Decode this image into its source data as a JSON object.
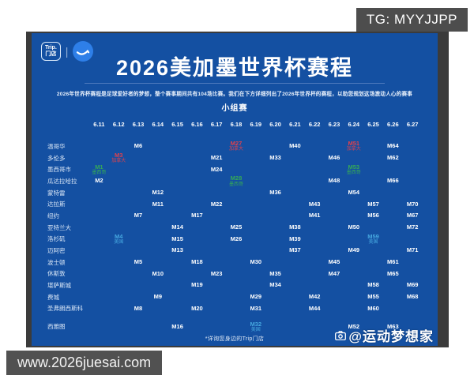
{
  "watermarks": {
    "top_right": "TG: MYYJJPP",
    "bottom_left": "www.2026juesai.com"
  },
  "poster": {
    "brand": {
      "badge_line1": "Trip.",
      "badge_line2": "门店",
      "separator": "|"
    },
    "title": "2026美加墨世界杯赛程",
    "subtitle": "2026年世界杯赛程是足球爱好者的梦想，整个赛事期间共有104场比赛。我们在下方详细列出了2026年世界杯的赛程，以助您规划这场激动人心的赛事",
    "stage_label": "小组赛",
    "footer_note": "*详询您身边的Trip门店",
    "credit": "@运动梦想家"
  },
  "colors": {
    "poster_bg": "#1450a2",
    "frame_gray": "#3b3b3b",
    "watermark_gray": "#4d4d4d",
    "canada_red": "#e2414b",
    "mexico_green": "#35a957",
    "usa_cyan": "#46a8e0",
    "logo_circle_blue": "#2e7fe8"
  },
  "chart_data": {
    "type": "table",
    "title": "2026美加墨世界杯赛程",
    "section": "小组赛",
    "columns": [
      "6.11",
      "6.12",
      "6.13",
      "6.14",
      "6.15",
      "6.16",
      "6.17",
      "6.18",
      "6.19",
      "6.20",
      "6.21",
      "6.22",
      "6.23",
      "6.24",
      "6.25",
      "6.26",
      "6.27"
    ],
    "rows": [
      {
        "city": "温哥华",
        "matches": [
          {
            "date": "6.13",
            "match": "M6"
          },
          {
            "date": "6.18",
            "match": "M27",
            "team": "加拿大",
            "highlight": "canada"
          },
          {
            "date": "6.21",
            "match": "M40"
          },
          {
            "date": "6.24",
            "match": "M51",
            "team": "加拿大",
            "highlight": "canada"
          },
          {
            "date": "6.26",
            "match": "M64"
          }
        ]
      },
      {
        "city": "多伦多",
        "matches": [
          {
            "date": "6.12",
            "match": "M3",
            "team": "加拿大",
            "highlight": "canada"
          },
          {
            "date": "6.17",
            "match": "M21"
          },
          {
            "date": "6.20",
            "match": "M33"
          },
          {
            "date": "6.23",
            "match": "M46"
          },
          {
            "date": "6.26",
            "match": "M62"
          }
        ]
      },
      {
        "city": "墨西哥市",
        "matches": [
          {
            "date": "6.11",
            "match": "M1",
            "team": "墨西哥",
            "highlight": "mexico"
          },
          {
            "date": "6.17",
            "match": "M24"
          },
          {
            "date": "6.24",
            "match": "M53",
            "team": "墨西哥",
            "highlight": "mexico"
          }
        ]
      },
      {
        "city": "瓜达拉哈拉",
        "matches": [
          {
            "date": "6.11",
            "match": "M2"
          },
          {
            "date": "6.18",
            "match": "M28",
            "team": "墨西哥",
            "highlight": "mexico"
          },
          {
            "date": "6.23",
            "match": "M48"
          },
          {
            "date": "6.26",
            "match": "M66"
          }
        ]
      },
      {
        "city": "蒙特雷",
        "matches": [
          {
            "date": "6.14",
            "match": "M12"
          },
          {
            "date": "6.20",
            "match": "M36"
          },
          {
            "date": "6.24",
            "match": "M54"
          }
        ]
      },
      {
        "city": "达拉斯",
        "matches": [
          {
            "date": "6.14",
            "match": "M11"
          },
          {
            "date": "6.17",
            "match": "M22"
          },
          {
            "date": "6.22",
            "match": "M43"
          },
          {
            "date": "6.25",
            "match": "M57"
          },
          {
            "date": "6.27",
            "match": "M70"
          }
        ]
      },
      {
        "city": "纽约",
        "matches": [
          {
            "date": "6.13",
            "match": "M7"
          },
          {
            "date": "6.16",
            "match": "M17"
          },
          {
            "date": "6.22",
            "match": "M41"
          },
          {
            "date": "6.25",
            "match": "M56"
          },
          {
            "date": "6.27",
            "match": "M67"
          }
        ]
      },
      {
        "city": "亚特兰大",
        "matches": [
          {
            "date": "6.15",
            "match": "M14"
          },
          {
            "date": "6.18",
            "match": "M25"
          },
          {
            "date": "6.21",
            "match": "M38"
          },
          {
            "date": "6.24",
            "match": "M50"
          },
          {
            "date": "6.27",
            "match": "M72"
          }
        ]
      },
      {
        "city": "洛杉矶",
        "matches": [
          {
            "date": "6.12",
            "match": "M4",
            "team": "美国",
            "highlight": "usa"
          },
          {
            "date": "6.15",
            "match": "M15"
          },
          {
            "date": "6.18",
            "match": "M26"
          },
          {
            "date": "6.21",
            "match": "M39"
          },
          {
            "date": "6.25",
            "match": "M59",
            "team": "美国",
            "highlight": "usa"
          }
        ]
      },
      {
        "city": "迈阿密",
        "matches": [
          {
            "date": "6.15",
            "match": "M13"
          },
          {
            "date": "6.21",
            "match": "M37"
          },
          {
            "date": "6.24",
            "match": "M49"
          },
          {
            "date": "6.27",
            "match": "M71"
          }
        ]
      },
      {
        "city": "波士顿",
        "matches": [
          {
            "date": "6.13",
            "match": "M5"
          },
          {
            "date": "6.16",
            "match": "M18"
          },
          {
            "date": "6.19",
            "match": "M30"
          },
          {
            "date": "6.23",
            "match": "M45"
          },
          {
            "date": "6.26",
            "match": "M61"
          }
        ]
      },
      {
        "city": "休斯敦",
        "matches": [
          {
            "date": "6.14",
            "match": "M10"
          },
          {
            "date": "6.17",
            "match": "M23"
          },
          {
            "date": "6.20",
            "match": "M35"
          },
          {
            "date": "6.23",
            "match": "M47"
          },
          {
            "date": "6.26",
            "match": "M65"
          }
        ]
      },
      {
        "city": "堪萨斯城",
        "matches": [
          {
            "date": "6.16",
            "match": "M19"
          },
          {
            "date": "6.20",
            "match": "M34"
          },
          {
            "date": "6.25",
            "match": "M58"
          },
          {
            "date": "6.27",
            "match": "M69"
          }
        ]
      },
      {
        "city": "费城",
        "matches": [
          {
            "date": "6.14",
            "match": "M9"
          },
          {
            "date": "6.19",
            "match": "M29"
          },
          {
            "date": "6.22",
            "match": "M42"
          },
          {
            "date": "6.25",
            "match": "M55"
          },
          {
            "date": "6.27",
            "match": "M68"
          }
        ]
      },
      {
        "city": "圣弗朗西斯科",
        "matches": [
          {
            "date": "6.13",
            "match": "M8"
          },
          {
            "date": "6.16",
            "match": "M20"
          },
          {
            "date": "6.19",
            "match": "M31"
          },
          {
            "date": "6.22",
            "match": "M44"
          },
          {
            "date": "6.25",
            "match": "M60"
          }
        ]
      },
      {
        "city": "西雅图",
        "gap_before": 8,
        "matches": [
          {
            "date": "6.15",
            "match": "M16"
          },
          {
            "date": "6.19",
            "match": "M32",
            "team": "美国",
            "highlight": "usa"
          },
          {
            "date": "6.24",
            "match": "M52"
          },
          {
            "date": "6.26",
            "match": "M63"
          }
        ]
      }
    ]
  }
}
